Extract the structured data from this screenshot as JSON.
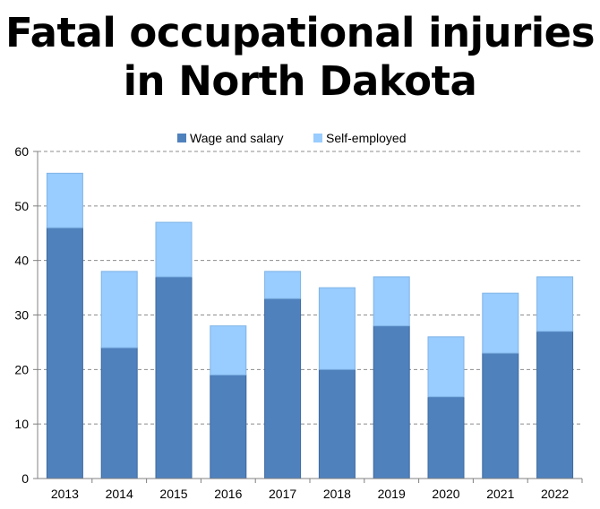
{
  "title_line1": "Fatal occupational injuries",
  "title_line2": "in North Dakota",
  "chart_data": {
    "type": "bar",
    "stacked": true,
    "categories": [
      "2013",
      "2014",
      "2015",
      "2016",
      "2017",
      "2018",
      "2019",
      "2020",
      "2021",
      "2022"
    ],
    "series": [
      {
        "name": "Wage and salary",
        "color": "#4f81bd",
        "values": [
          46,
          24,
          37,
          19,
          33,
          20,
          28,
          15,
          23,
          27
        ]
      },
      {
        "name": "Self-employed",
        "color": "#99ccff",
        "values": [
          10,
          14,
          10,
          9,
          5,
          15,
          9,
          11,
          11,
          10
        ]
      }
    ],
    "yticks": [
      "0",
      "10",
      "20",
      "30",
      "40",
      "50",
      "60"
    ],
    "ylim": [
      0,
      60
    ],
    "grid": "horizontal dashed",
    "legend": "top-center"
  }
}
